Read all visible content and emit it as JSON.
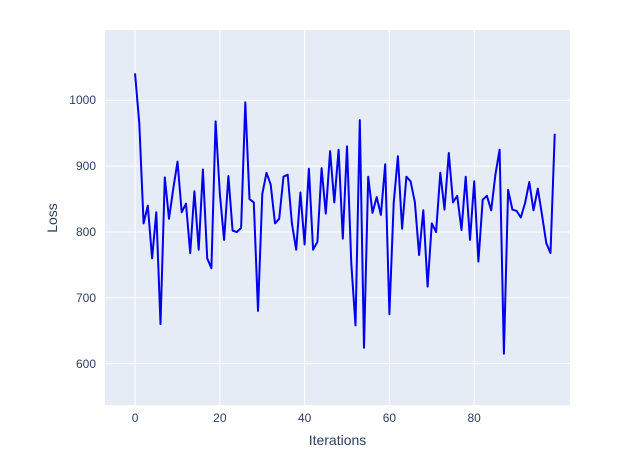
{
  "chart_data": {
    "type": "line",
    "title": "",
    "xlabel": "Iterations",
    "ylabel": "Loss",
    "x_start": 0,
    "x_step": 1,
    "series": [
      {
        "name": "Loss",
        "color": "#0000ee",
        "values": [
          1040,
          965,
          813,
          840,
          760,
          830,
          660,
          883,
          820,
          865,
          907,
          830,
          843,
          768,
          862,
          773,
          895,
          760,
          745,
          968,
          857,
          788,
          885,
          802,
          800,
          806,
          997,
          850,
          845,
          680,
          858,
          890,
          872,
          813,
          820,
          884,
          887,
          813,
          773,
          860,
          781,
          896,
          773,
          785,
          897,
          828,
          923,
          845,
          925,
          790,
          930,
          752,
          658,
          970,
          624,
          884,
          829,
          853,
          826,
          903,
          675,
          844,
          915,
          805,
          884,
          877,
          845,
          765,
          833,
          717,
          813,
          800,
          890,
          834,
          920,
          845,
          855,
          803,
          884,
          788,
          877,
          755,
          849,
          855,
          833,
          887,
          925,
          615,
          864,
          834,
          832,
          822,
          844,
          876,
          833,
          866,
          826,
          783,
          768,
          948
        ]
      }
    ],
    "xlim": [
      -7.1,
      102.6
    ],
    "ylim": [
      537,
      1107
    ],
    "x_ticks": [
      0,
      20,
      40,
      60,
      80
    ],
    "y_ticks": [
      600,
      700,
      800,
      900,
      1000
    ],
    "grid": true,
    "legend_shown": false,
    "plot_bg_color": "#e5ecf6",
    "paper_bg_color": "#ffffff",
    "grid_color": "#ffffff",
    "text_color": "#2a3f5f",
    "line_width": 2
  }
}
